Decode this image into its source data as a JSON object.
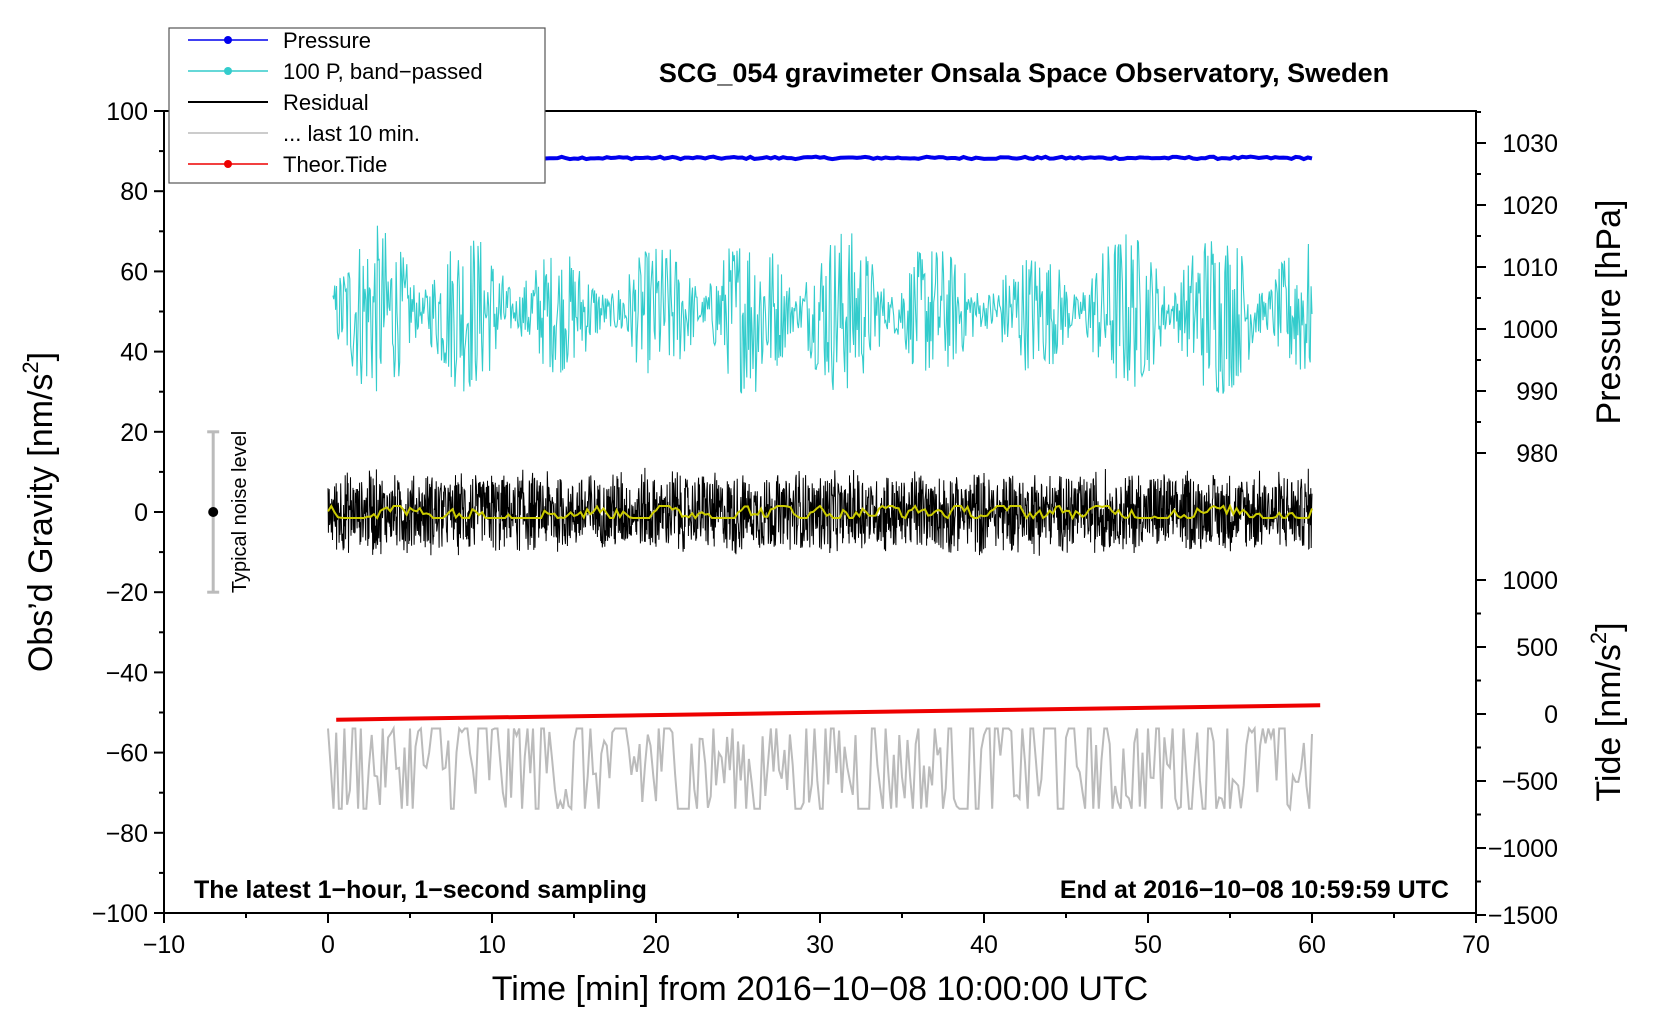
{
  "chart_data": {
    "type": "line",
    "title": "SCG_054 gravimeter Onsala Space Observatory, Sweden",
    "xlabel": "Time [min] from 2016−10−08 10:00:00 UTC",
    "ylabel": "Obs’d Gravity [nm/s",
    "ylabel_sup": "2",
    "ylabel_close": "]",
    "y2label_pressure": "Pressure [hPa]",
    "y2label_tide": "Tide [nm/s",
    "y2label_tide_sup": "2",
    "y2label_tide_close": "]",
    "xlim": [
      -10,
      70
    ],
    "ylim": [
      -100,
      100
    ],
    "x_ticks": [
      "−10",
      "0",
      "10",
      "20",
      "30",
      "40",
      "50",
      "60",
      "70"
    ],
    "y_ticks": [
      "100",
      "80",
      "60",
      "40",
      "20",
      "0",
      "−20",
      "−40",
      "−60",
      "−80",
      "−100"
    ],
    "pressure_ticks": [
      "1030",
      "1020",
      "1010",
      "1000",
      "990",
      "980"
    ],
    "tide_ticks": [
      "1000",
      "500",
      "0",
      "−500",
      "−1000",
      "−1500"
    ],
    "annotation_left": "The latest 1−hour, 1−second sampling",
    "annotation_right": "End at 2016−10−08 10:59:59 UTC",
    "noise_label": "Typical noise level",
    "noise_bar": {
      "x": -7,
      "center": 0,
      "low": -20,
      "high": 20
    },
    "legend": [
      {
        "label": "Pressure",
        "color": "#0000ee",
        "marker": true
      },
      {
        "label": "100 P, band−passed",
        "color": "#33cccc",
        "marker": true
      },
      {
        "label": "Residual",
        "color": "#000000",
        "marker": false
      },
      {
        "label": "... last 10 min.",
        "color": "#bbbbbb",
        "marker": false
      },
      {
        "label": "Theor.Tide",
        "color": "#ee0000",
        "marker": true
      }
    ],
    "series": [
      {
        "name": "Pressure",
        "color": "#0000ee",
        "x_range": [
          0,
          60
        ],
        "level": 88.3,
        "noise": 0.3
      },
      {
        "name": "100 P, band−passed",
        "color": "#33cccc",
        "x_range": [
          0.3,
          60
        ],
        "center": 50,
        "noise_min": -22,
        "noise_max": 22
      },
      {
        "name": "Residual",
        "color": "#000000",
        "x_range": [
          0,
          60
        ],
        "center": 0,
        "noise_min": -12,
        "noise_max": 11
      },
      {
        "name": "Residual smoothed",
        "color": "#cccc00",
        "x_range": [
          0,
          60
        ],
        "center": 0,
        "noise_min": -1.5,
        "noise_max": 1.5
      },
      {
        "name": "... last 10 min.",
        "color": "#bbbbbb",
        "x_range": [
          0,
          60
        ],
        "center": -63,
        "noise_min": -11,
        "noise_max": 9
      },
      {
        "name": "Theor.Tide",
        "color": "#ee0000",
        "x": [
          0.5,
          60.5
        ],
        "y": [
          -51.8,
          -48.2
        ]
      }
    ]
  }
}
